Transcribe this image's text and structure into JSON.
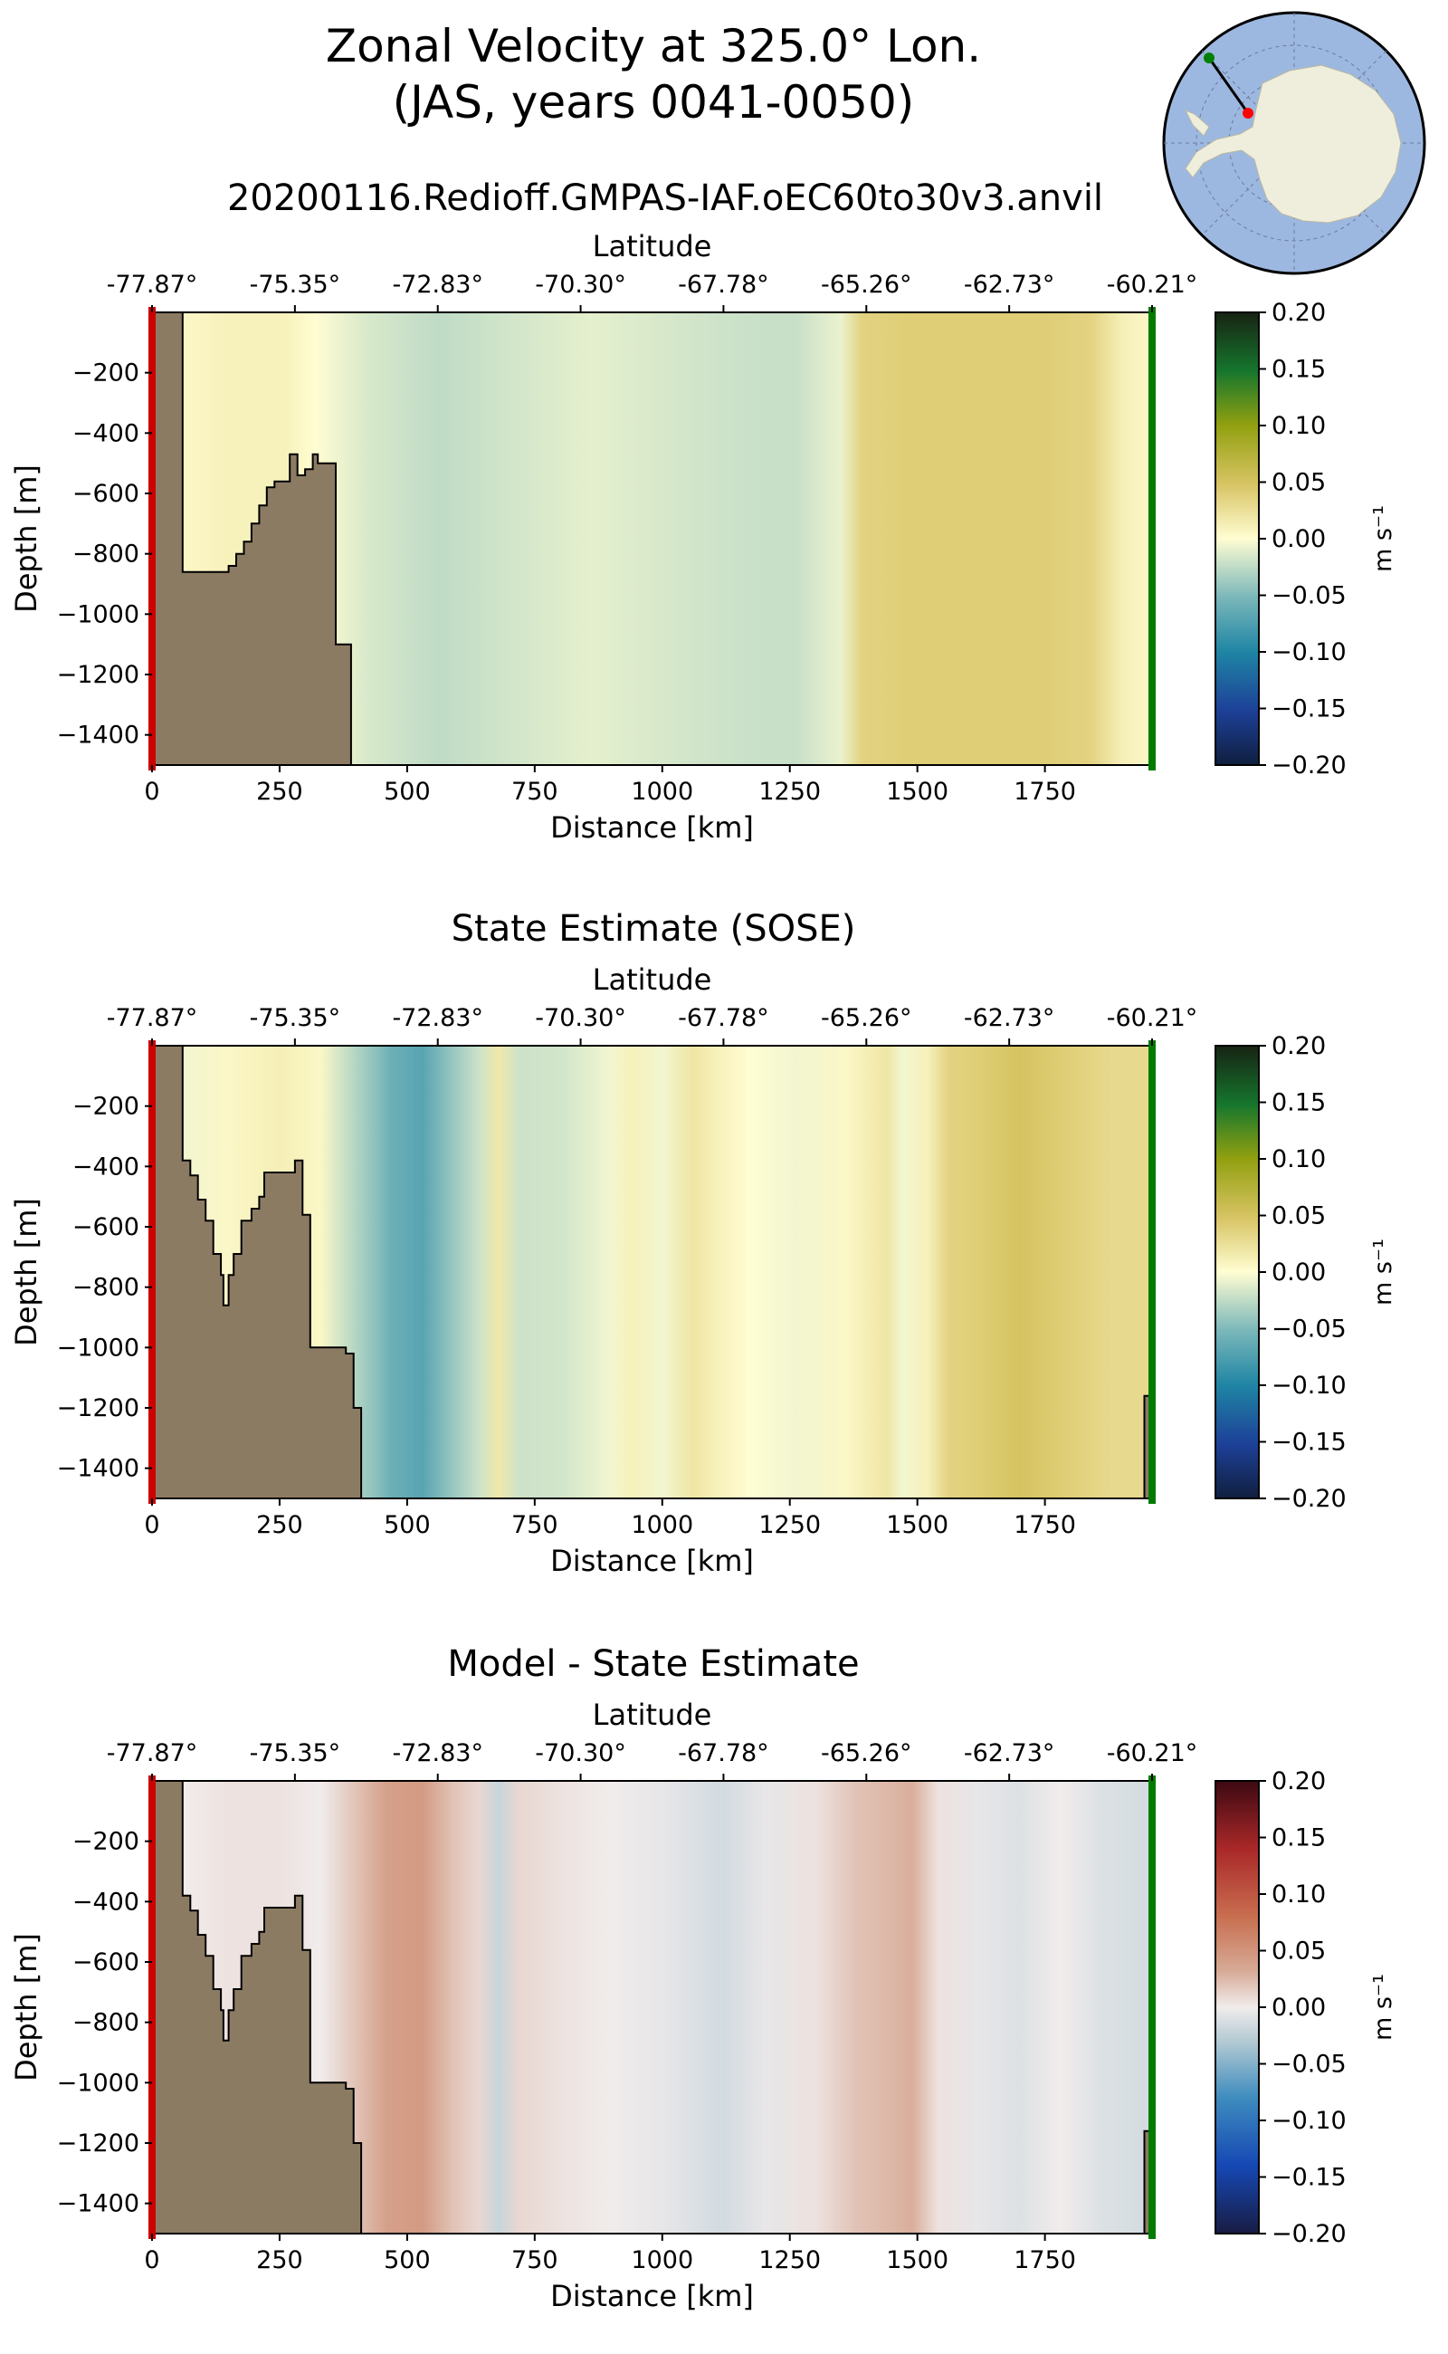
{
  "figure": {
    "title_line1": "Zonal Velocity at 325.0° Lon.",
    "title_line2": "(JAS, years 0041-0050)",
    "run_name": "20200116.Redioff.GMPAS-IAF.oEC60to30v3.anvil"
  },
  "inset_map": {
    "description_icon": "antarctica-polar-map-icon",
    "land_color": "#efeedd",
    "ocean_color": "#9db8e0",
    "transect_start_color": "#ff0000",
    "transect_end_color": "#008000"
  },
  "colors": {
    "bathymetry": "#8c7b63",
    "start_marker": "#cc0000",
    "end_marker": "#007a00"
  },
  "chart_data": [
    {
      "type": "heatmap",
      "title": "",
      "xlabel": "Distance [km]",
      "ylabel": "Depth [m]",
      "top_axis_label": "Latitude",
      "top_tick_labels": [
        "-77.87°",
        "-75.35°",
        "-72.83°",
        "-70.30°",
        "-67.78°",
        "-65.26°",
        "-62.73°",
        "-60.21°"
      ],
      "top_tick_positions_km": [
        0,
        280,
        560,
        840,
        1120,
        1400,
        1680,
        1960
      ],
      "xlim": [
        0,
        1960
      ],
      "ylim": [
        -1500,
        0
      ],
      "x_ticks": [
        0,
        250,
        500,
        750,
        1000,
        1250,
        1500,
        1750
      ],
      "y_ticks": [
        -200,
        -400,
        -600,
        -800,
        -1000,
        -1200,
        -1400
      ],
      "colormap": "delta",
      "clim": [
        -0.2,
        0.2
      ],
      "colorbar_label": "m s⁻¹",
      "colorbar_ticks": [
        "0.20",
        "0.15",
        "0.10",
        "0.05",
        "0.00",
        "−0.05",
        "−0.10",
        "−0.15",
        "−0.20"
      ],
      "velocity_profile": {
        "distance_km": [
          0,
          60,
          150,
          260,
          320,
          420,
          560,
          700,
          860,
          980,
          1120,
          1260,
          1350,
          1390,
          1480,
          1640,
          1750,
          1840,
          1900,
          1960
        ],
        "value_ms": [
          0.0,
          0.005,
          0.01,
          0.01,
          0.0,
          -0.015,
          -0.025,
          -0.018,
          -0.01,
          -0.015,
          -0.02,
          -0.022,
          -0.008,
          0.035,
          0.04,
          0.04,
          0.04,
          0.035,
          0.012,
          0.004
        ]
      },
      "bathymetry": {
        "distance_km": [
          0,
          60,
          60,
          150,
          150,
          165,
          165,
          180,
          180,
          195,
          195,
          210,
          210,
          225,
          225,
          240,
          240,
          270,
          270,
          285,
          285,
          300,
          300,
          315,
          315,
          325,
          325,
          360,
          360,
          390,
          390
        ],
        "depth_m": [
          0,
          0,
          -860,
          -860,
          -840,
          -840,
          -800,
          -800,
          -760,
          -760,
          -700,
          -700,
          -640,
          -640,
          -580,
          -580,
          -560,
          -560,
          -470,
          -470,
          -540,
          -540,
          -520,
          -520,
          -470,
          -470,
          -500,
          -500,
          -1100,
          -1100,
          -1500
        ]
      },
      "right_bathymetry": null
    },
    {
      "type": "heatmap",
      "title": "State Estimate (SOSE)",
      "xlabel": "Distance [km]",
      "ylabel": "Depth [m]",
      "top_axis_label": "Latitude",
      "top_tick_labels": [
        "-77.87°",
        "-75.35°",
        "-72.83°",
        "-70.30°",
        "-67.78°",
        "-65.26°",
        "-62.73°",
        "-60.21°"
      ],
      "top_tick_positions_km": [
        0,
        280,
        560,
        840,
        1120,
        1400,
        1680,
        1960
      ],
      "xlim": [
        0,
        1960
      ],
      "ylim": [
        -1500,
        0
      ],
      "x_ticks": [
        0,
        250,
        500,
        750,
        1000,
        1250,
        1500,
        1750
      ],
      "y_ticks": [
        -200,
        -400,
        -600,
        -800,
        -1000,
        -1200,
        -1400
      ],
      "colormap": "delta",
      "clim": [
        -0.2,
        0.2
      ],
      "colorbar_label": "m s⁻¹",
      "colorbar_ticks": [
        "0.20",
        "0.15",
        "0.10",
        "0.05",
        "0.00",
        "−0.05",
        "−0.10",
        "−0.15",
        "−0.20"
      ],
      "velocity_profile": {
        "distance_km": [
          0,
          60,
          150,
          250,
          330,
          400,
          470,
          530,
          590,
          640,
          680,
          720,
          800,
          900,
          940,
          1000,
          1060,
          1110,
          1170,
          1260,
          1360,
          1440,
          1470,
          1520,
          1560,
          1620,
          1700,
          1790,
          1880,
          1960
        ],
        "value_ms": [
          0.0,
          -0.005,
          0.005,
          0.012,
          0.005,
          -0.03,
          -0.06,
          -0.07,
          -0.04,
          -0.02,
          0.018,
          -0.02,
          -0.018,
          -0.005,
          0.01,
          -0.005,
          0.02,
          0.01,
          0.0,
          -0.005,
          0.005,
          0.02,
          -0.005,
          0.01,
          0.035,
          0.04,
          0.05,
          0.04,
          0.03,
          0.03
        ]
      },
      "bathymetry": {
        "distance_km": [
          0,
          60,
          60,
          75,
          75,
          90,
          90,
          105,
          105,
          120,
          120,
          135,
          135,
          140,
          140,
          150,
          150,
          160,
          160,
          175,
          175,
          195,
          195,
          210,
          210,
          220,
          220,
          280,
          280,
          295,
          295,
          310,
          310,
          380,
          380,
          395,
          395,
          410,
          410
        ],
        "depth_m": [
          0,
          0,
          -380,
          -380,
          -430,
          -430,
          -510,
          -510,
          -580,
          -580,
          -690,
          -690,
          -760,
          -760,
          -860,
          -860,
          -760,
          -760,
          -690,
          -690,
          -580,
          -580,
          -540,
          -540,
          -500,
          -500,
          -420,
          -420,
          -380,
          -380,
          -560,
          -560,
          -1000,
          -1000,
          -1020,
          -1020,
          -1200,
          -1200,
          -1500
        ]
      },
      "right_bathymetry": {
        "distance_km": [
          1960,
          1960,
          1945,
          1945,
          1960
        ],
        "depth_m": [
          -1500,
          -1160,
          -1160,
          -1500,
          -1500
        ]
      }
    },
    {
      "type": "heatmap",
      "title": "Model - State Estimate",
      "xlabel": "Distance [km]",
      "ylabel": "Depth [m]",
      "top_axis_label": "Latitude",
      "top_tick_labels": [
        "-77.87°",
        "-75.35°",
        "-72.83°",
        "-70.30°",
        "-67.78°",
        "-65.26°",
        "-62.73°",
        "-60.21°"
      ],
      "top_tick_positions_km": [
        0,
        280,
        560,
        840,
        1120,
        1400,
        1680,
        1960
      ],
      "xlim": [
        0,
        1960
      ],
      "ylim": [
        -1500,
        0
      ],
      "x_ticks": [
        0,
        250,
        500,
        750,
        1000,
        1250,
        1500,
        1750
      ],
      "y_ticks": [
        -200,
        -400,
        -600,
        -800,
        -1000,
        -1200,
        -1400
      ],
      "colormap": "balance",
      "clim": [
        -0.2,
        0.2
      ],
      "colorbar_label": "m s⁻¹",
      "colorbar_ticks": [
        "0.20",
        "0.15",
        "0.10",
        "0.05",
        "0.00",
        "−0.05",
        "−0.10",
        "−0.15",
        "−0.20"
      ],
      "velocity_profile": {
        "distance_km": [
          0,
          60,
          150,
          250,
          330,
          400,
          460,
          530,
          590,
          640,
          680,
          720,
          800,
          900,
          1000,
          1060,
          1120,
          1200,
          1300,
          1380,
          1440,
          1490,
          1540,
          1620,
          1700,
          1780,
          1860,
          1960
        ],
        "value_ms": [
          0.0,
          0.0,
          0.005,
          0.005,
          0.0,
          0.02,
          0.04,
          0.045,
          0.02,
          0.01,
          -0.02,
          0.01,
          0.005,
          0.0,
          -0.005,
          -0.01,
          -0.015,
          -0.005,
          0.005,
          0.02,
          0.025,
          0.03,
          0.005,
          -0.005,
          -0.01,
          0.0,
          -0.01,
          -0.015
        ]
      },
      "bathymetry": {
        "distance_km": [
          0,
          60,
          60,
          75,
          75,
          90,
          90,
          105,
          105,
          120,
          120,
          135,
          135,
          140,
          140,
          150,
          150,
          160,
          160,
          175,
          175,
          195,
          195,
          210,
          210,
          220,
          220,
          280,
          280,
          295,
          295,
          310,
          310,
          380,
          380,
          395,
          395,
          410,
          410
        ],
        "depth_m": [
          0,
          0,
          -380,
          -380,
          -430,
          -430,
          -510,
          -510,
          -580,
          -580,
          -690,
          -690,
          -760,
          -760,
          -860,
          -860,
          -760,
          -760,
          -690,
          -690,
          -580,
          -580,
          -540,
          -540,
          -500,
          -500,
          -420,
          -420,
          -380,
          -380,
          -560,
          -560,
          -1000,
          -1000,
          -1020,
          -1020,
          -1200,
          -1200,
          -1500
        ]
      },
      "right_bathymetry": {
        "distance_km": [
          1960,
          1960,
          1945,
          1945,
          1960
        ],
        "depth_m": [
          -1500,
          -1160,
          -1160,
          -1500,
          -1500
        ]
      }
    }
  ]
}
